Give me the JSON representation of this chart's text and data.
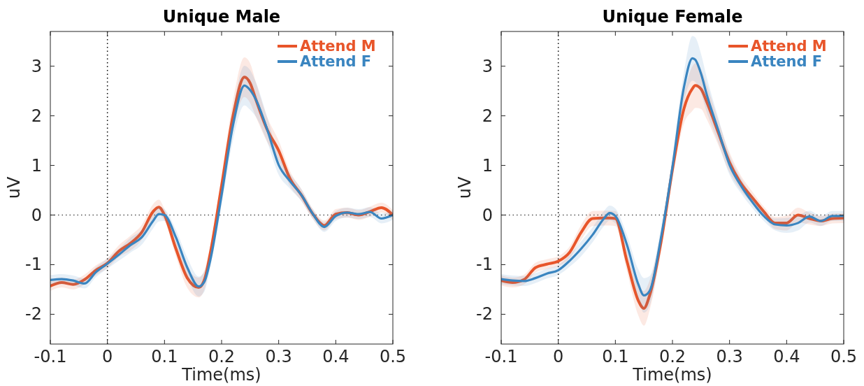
{
  "chart_data": [
    {
      "type": "line",
      "title": "Unique Male",
      "xlabel": "Time(ms)",
      "ylabel": "uV",
      "x": [
        -0.1,
        -0.08,
        -0.06,
        -0.04,
        -0.02,
        0,
        0.02,
        0.04,
        0.06,
        0.08,
        0.09,
        0.1,
        0.12,
        0.14,
        0.16,
        0.17,
        0.18,
        0.2,
        0.22,
        0.24,
        0.25,
        0.26,
        0.28,
        0.3,
        0.32,
        0.34,
        0.36,
        0.38,
        0.4,
        0.42,
        0.44,
        0.46,
        0.48,
        0.5
      ],
      "series": [
        {
          "name": "Attend M",
          "color": "#e8552a",
          "values": [
            -1.43,
            -1.36,
            -1.4,
            -1.3,
            -1.11,
            -0.97,
            -0.73,
            -0.57,
            -0.35,
            0.07,
            0.16,
            0,
            -0.68,
            -1.27,
            -1.46,
            -1.3,
            -0.78,
            0.59,
            2.0,
            2.78,
            2.66,
            2.33,
            1.72,
            1.3,
            0.73,
            0.4,
            0.02,
            -0.21,
            0.02,
            0.05,
            0,
            0.07,
            0.15,
            0
          ],
          "lower": [
            -1.53,
            -1.46,
            -1.5,
            -1.4,
            -1.21,
            -1.07,
            -0.85,
            -0.72,
            -0.5,
            -0.08,
            0.01,
            -0.12,
            -0.83,
            -1.47,
            -1.66,
            -1.5,
            -0.93,
            0.39,
            1.7,
            2.38,
            2.26,
            1.98,
            1.47,
            1.1,
            0.58,
            0.28,
            -0.08,
            -0.31,
            -0.08,
            -0.05,
            -0.1,
            -0.03,
            0.05,
            -0.1
          ],
          "upper": [
            -1.33,
            -1.26,
            -1.3,
            -1.2,
            -1.01,
            -0.87,
            -0.61,
            -0.42,
            -0.2,
            0.22,
            0.31,
            0.12,
            -0.53,
            -1.07,
            -1.26,
            -1.1,
            -0.63,
            0.79,
            2.3,
            3.18,
            3.06,
            2.68,
            1.97,
            1.5,
            0.88,
            0.52,
            0.12,
            -0.11,
            0.12,
            0.15,
            0.1,
            0.17,
            0.25,
            0.1
          ]
        },
        {
          "name": "Attend F",
          "color": "#3a85c0",
          "values": [
            -1.31,
            -1.29,
            -1.32,
            -1.38,
            -1.15,
            -0.98,
            -0.8,
            -0.61,
            -0.45,
            -0.12,
            0.02,
            0,
            -0.45,
            -1.06,
            -1.44,
            -1.34,
            -0.92,
            0.4,
            1.81,
            2.61,
            2.52,
            2.33,
            1.72,
            1.01,
            0.68,
            0.4,
            0.02,
            -0.24,
            -0.02,
            0.05,
            0.02,
            0.06,
            -0.07,
            0
          ],
          "lower": [
            -1.41,
            -1.39,
            -1.42,
            -1.48,
            -1.25,
            -1.08,
            -0.92,
            -0.76,
            -0.6,
            -0.27,
            -0.13,
            -0.12,
            -0.6,
            -1.26,
            -1.64,
            -1.54,
            -1.07,
            0.2,
            1.51,
            2.21,
            2.12,
            1.98,
            1.47,
            0.81,
            0.53,
            0.28,
            -0.08,
            -0.34,
            -0.12,
            -0.05,
            -0.08,
            -0.04,
            -0.17,
            -0.1
          ],
          "upper": [
            -1.21,
            -1.19,
            -1.22,
            -1.28,
            -1.05,
            -0.88,
            -0.68,
            -0.46,
            -0.3,
            0.03,
            0.17,
            0.12,
            -0.3,
            -0.86,
            -1.24,
            -1.14,
            -0.77,
            0.6,
            2.11,
            3.01,
            2.92,
            2.68,
            1.97,
            1.21,
            0.83,
            0.52,
            0.12,
            -0.14,
            0.08,
            0.15,
            0.12,
            0.16,
            0.03,
            0.1
          ]
        }
      ],
      "xlim": [
        -0.1,
        0.5
      ],
      "xticks": [
        -0.1,
        0,
        0.1,
        0.2,
        0.3,
        0.4,
        0.5
      ],
      "ylim": [
        -2.6,
        3.7
      ],
      "yticks": [
        -2,
        -1,
        0,
        1,
        2,
        3
      ],
      "ref_lines": [
        {
          "axis": "x",
          "value": 0,
          "color": "#000000",
          "line_style": "dotted"
        },
        {
          "axis": "y",
          "value": 0,
          "color": "#555555",
          "line_style": "dotted"
        }
      ],
      "legend": "top right",
      "grid": false,
      "line_style": "solid",
      "marker": "none"
    },
    {
      "type": "line",
      "title": "Unique Female",
      "xlabel": "Time(ms)",
      "ylabel": "uV",
      "x": [
        -0.1,
        -0.08,
        -0.06,
        -0.04,
        -0.02,
        0,
        0.02,
        0.04,
        0.06,
        0.08,
        0.09,
        0.1,
        0.12,
        0.14,
        0.15,
        0.16,
        0.18,
        0.2,
        0.22,
        0.235,
        0.24,
        0.25,
        0.26,
        0.28,
        0.3,
        0.32,
        0.34,
        0.36,
        0.38,
        0.4,
        0.42,
        0.44,
        0.46,
        0.48,
        0.5
      ],
      "series": [
        {
          "name": "Attend M",
          "color": "#e8552a",
          "values": [
            -1.32,
            -1.36,
            -1.3,
            -1.06,
            -0.99,
            -0.93,
            -0.75,
            -0.35,
            -0.07,
            -0.06,
            -0.06,
            -0.07,
            -0.92,
            -1.72,
            -1.88,
            -1.62,
            -0.54,
            0.92,
            2.14,
            2.55,
            2.61,
            2.54,
            2.28,
            1.67,
            1.06,
            0.64,
            0.35,
            0.07,
            -0.16,
            -0.16,
            0,
            -0.07,
            -0.12,
            -0.07,
            -0.06
          ],
          "lower": [
            -1.42,
            -1.46,
            -1.4,
            -1.16,
            -1.09,
            -1.03,
            -0.87,
            -0.5,
            -0.22,
            -0.21,
            -0.21,
            -0.22,
            -1.12,
            -2.02,
            -2.23,
            -1.92,
            -0.74,
            0.72,
            1.84,
            2.1,
            2.16,
            2.14,
            1.93,
            1.42,
            0.86,
            0.49,
            0.23,
            -0.03,
            -0.28,
            -0.31,
            -0.15,
            -0.19,
            -0.22,
            -0.17,
            -0.16
          ],
          "upper": [
            -1.22,
            -1.26,
            -1.2,
            -0.96,
            -0.89,
            -0.83,
            -0.63,
            -0.2,
            0.08,
            0.09,
            0.09,
            0.08,
            -0.72,
            -1.42,
            -1.53,
            -1.32,
            -0.34,
            1.12,
            2.44,
            3.0,
            3.06,
            2.94,
            2.63,
            1.92,
            1.26,
            0.79,
            0.47,
            0.17,
            -0.04,
            -0.01,
            0.15,
            0.05,
            -0.02,
            0.03,
            0.04
          ]
        },
        {
          "name": "Attend F",
          "color": "#3a85c0",
          "values": [
            -1.29,
            -1.32,
            -1.33,
            -1.27,
            -1.18,
            -1.11,
            -0.92,
            -0.68,
            -0.4,
            -0.07,
            0.04,
            -0.02,
            -0.59,
            -1.39,
            -1.62,
            -1.53,
            -0.45,
            0.97,
            2.57,
            3.16,
            3.13,
            2.85,
            2.43,
            1.72,
            1.01,
            0.59,
            0.26,
            -0.02,
            -0.19,
            -0.21,
            -0.16,
            -0.03,
            -0.12,
            -0.02,
            -0.02
          ],
          "lower": [
            -1.39,
            -1.42,
            -1.43,
            -1.37,
            -1.28,
            -1.21,
            -1.04,
            -0.83,
            -0.55,
            -0.22,
            -0.11,
            -0.17,
            -0.79,
            -1.69,
            -1.97,
            -1.83,
            -0.65,
            0.77,
            2.27,
            2.71,
            2.68,
            2.45,
            2.08,
            1.47,
            0.81,
            0.44,
            0.14,
            -0.12,
            -0.31,
            -0.36,
            -0.31,
            -0.15,
            -0.22,
            -0.12,
            -0.12
          ],
          "upper": [
            -1.19,
            -1.22,
            -1.23,
            -1.17,
            -1.08,
            -1.01,
            -0.8,
            -0.53,
            -0.25,
            0.08,
            0.19,
            0.13,
            -0.39,
            -1.09,
            -1.27,
            -1.23,
            -0.25,
            1.17,
            2.87,
            3.61,
            3.58,
            3.25,
            2.78,
            1.97,
            1.21,
            0.74,
            0.38,
            0.08,
            -0.07,
            -0.06,
            -0.01,
            0.09,
            -0.02,
            0.08,
            0.08
          ]
        }
      ],
      "xlim": [
        -0.1,
        0.5
      ],
      "xticks": [
        -0.1,
        0,
        0.1,
        0.2,
        0.3,
        0.4,
        0.5
      ],
      "ylim": [
        -2.6,
        3.7
      ],
      "yticks": [
        -2,
        -1,
        0,
        1,
        2,
        3
      ],
      "ref_lines": [
        {
          "axis": "x",
          "value": 0,
          "color": "#000000",
          "line_style": "dotted"
        },
        {
          "axis": "y",
          "value": 0,
          "color": "#555555",
          "line_style": "dotted"
        }
      ],
      "legend": "top right",
      "grid": false,
      "line_style": "solid",
      "marker": "none"
    }
  ]
}
